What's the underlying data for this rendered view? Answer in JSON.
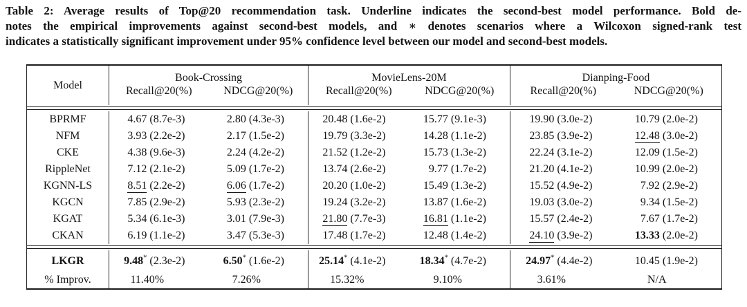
{
  "page": {
    "background": "#ffffff",
    "text_color": "#141414",
    "rule_color": "#1a1a1a"
  },
  "caption": {
    "line1": "Table 2: Average results of Top@20 recommendation task. Underline indicates the second-best model performance. Bold de-",
    "line2": "notes the empirical improvements against second-best models, and ∗ denotes scenarios where a Wilcoxon signed-rank test",
    "line3": "indicates a statistically significant improvement under 95% confidence level between our model and second-best models."
  },
  "table": {
    "model_header": "Model",
    "groups": [
      {
        "name": "Book-Crossing",
        "metrics": [
          "Recall@20(%)",
          "NDCG@20(%)"
        ]
      },
      {
        "name": "MovieLens-20M",
        "metrics": [
          "Recall@20(%)",
          "NDCG@20(%)"
        ]
      },
      {
        "name": "Dianping-Food",
        "metrics": [
          "Recall@20(%)",
          "NDCG@20(%)"
        ]
      }
    ],
    "rows": [
      {
        "model": "BPRMF",
        "cells": [
          {
            "value": "4.67",
            "std": "(8.7e-3)"
          },
          {
            "value": "2.80",
            "std": "(4.3e-3)"
          },
          {
            "value": "20.48",
            "std": "(1.6e-2)"
          },
          {
            "value": "15.77",
            "std": "(9.1e-3)"
          },
          {
            "value": "19.90",
            "std": "(3.0e-2)"
          },
          {
            "value": "10.79",
            "std": "(2.0e-2)"
          }
        ]
      },
      {
        "model": "NFM",
        "cells": [
          {
            "value": "3.93",
            "std": "(2.2e-2)"
          },
          {
            "value": "2.17",
            "std": "(1.5e-2)"
          },
          {
            "value": "19.79",
            "std": "(3.3e-2)"
          },
          {
            "value": "14.28",
            "std": "(1.1e-2)"
          },
          {
            "value": "23.85",
            "std": "(3.9e-2)"
          },
          {
            "value": "12.48",
            "std": "(3.0e-2)",
            "underline": true
          }
        ]
      },
      {
        "model": "CKE",
        "cells": [
          {
            "value": "4.38",
            "std": "(9.6e-3)"
          },
          {
            "value": "2.24",
            "std": "(4.2e-2)"
          },
          {
            "value": "21.52",
            "std": "(1.2e-2)"
          },
          {
            "value": "15.73",
            "std": "(1.3e-2)"
          },
          {
            "value": "22.24",
            "std": "(3.1e-2)"
          },
          {
            "value": "12.09",
            "std": "(1.5e-2)"
          }
        ]
      },
      {
        "model": "RippleNet",
        "cells": [
          {
            "value": "7.12",
            "std": "(2.1e-2)"
          },
          {
            "value": "5.09",
            "std": "(1.7e-2)"
          },
          {
            "value": "13.74",
            "std": "(2.6e-2)"
          },
          {
            "value": "9.77",
            "std": "(1.7e-2)"
          },
          {
            "value": "21.20",
            "std": "(4.1e-2)"
          },
          {
            "value": "10.99",
            "std": "(2.0e-2)"
          }
        ]
      },
      {
        "model": "KGNN-LS",
        "cells": [
          {
            "value": "8.51",
            "std": "(2.2e-2)",
            "underline": true
          },
          {
            "value": "6.06",
            "std": "(1.7e-2)",
            "underline": true
          },
          {
            "value": "20.20",
            "std": "(1.0e-2)"
          },
          {
            "value": "15.49",
            "std": "(1.3e-2)"
          },
          {
            "value": "15.52",
            "std": "(4.9e-2)"
          },
          {
            "value": "7.92",
            "std": "(2.9e-2)"
          }
        ]
      },
      {
        "model": "KGCN",
        "cells": [
          {
            "value": "7.85",
            "std": "(2.9e-2)"
          },
          {
            "value": "5.93",
            "std": "(2.3e-2)"
          },
          {
            "value": "19.24",
            "std": "(3.2e-2)"
          },
          {
            "value": "13.87",
            "std": "(1.6e-2)"
          },
          {
            "value": "19.03",
            "std": "(3.0e-2)"
          },
          {
            "value": "9.34",
            "std": "(1.5e-2)"
          }
        ]
      },
      {
        "model": "KGAT",
        "cells": [
          {
            "value": "5.34",
            "std": "(6.1e-3)"
          },
          {
            "value": "3.01",
            "std": "(7.9e-3)"
          },
          {
            "value": "21.80",
            "std": "(7.7e-3)",
            "underline": true
          },
          {
            "value": "16.81",
            "std": "(1.1e-2)",
            "underline": true
          },
          {
            "value": "15.57",
            "std": "(2.4e-2)"
          },
          {
            "value": "7.67",
            "std": "(1.7e-2)"
          }
        ]
      },
      {
        "model": "CKAN",
        "cells": [
          {
            "value": "6.19",
            "std": "(1.1e-2)"
          },
          {
            "value": "3.47",
            "std": "(5.3e-3)"
          },
          {
            "value": "17.48",
            "std": "(1.7e-2)"
          },
          {
            "value": "12.48",
            "std": "(1.4e-2)"
          },
          {
            "value": "24.10",
            "std": "(3.9e-2)",
            "underline": true
          },
          {
            "value": "13.33",
            "std": "(2.0e-2)",
            "bold": true
          }
        ]
      }
    ],
    "summary_rows": [
      {
        "model": "LKGR",
        "model_bold": true,
        "cells": [
          {
            "value": "9.48",
            "std": "(2.3e-2)",
            "bold": true,
            "star": true
          },
          {
            "value": "6.50",
            "std": "(1.6e-2)",
            "bold": true,
            "star": true
          },
          {
            "value": "25.14",
            "std": "(4.1e-2)",
            "bold": true,
            "star": true
          },
          {
            "value": "18.34",
            "std": "(4.7e-2)",
            "bold": true,
            "star": true
          },
          {
            "value": "24.97",
            "std": "(4.4e-2)",
            "bold": true,
            "star": true
          },
          {
            "value": "10.45",
            "std": "(1.9e-2)"
          }
        ]
      },
      {
        "model": "% Improv.",
        "center_cells": true,
        "cells": [
          {
            "value": "11.40%"
          },
          {
            "value": "7.26%"
          },
          {
            "value": "15.32%"
          },
          {
            "value": "9.10%"
          },
          {
            "value": "3.61%"
          },
          {
            "value": "N/A"
          }
        ]
      }
    ]
  }
}
